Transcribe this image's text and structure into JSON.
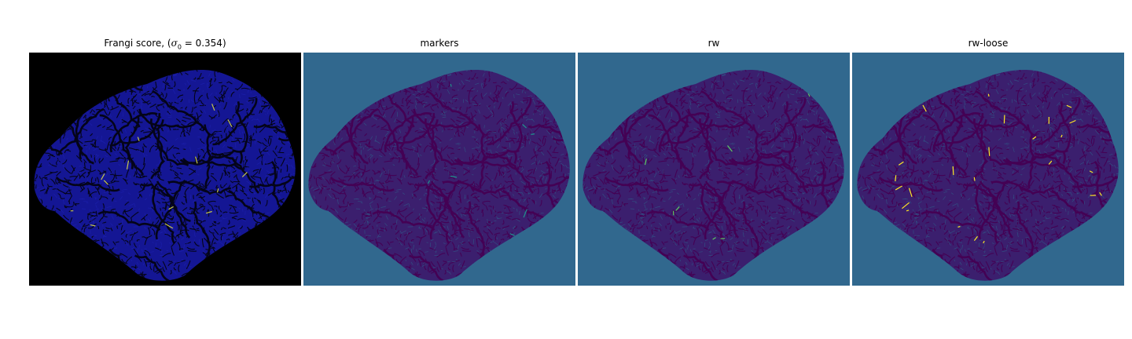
{
  "figure": {
    "panels": [
      {
        "title_prefix": "Frangi score, (",
        "sigma_symbol": "σ",
        "sigma_sub": "0",
        "title_suffix": " = 0.354)",
        "colors": {
          "background": "#000000",
          "tissue": "#141694",
          "vessel": "#040418",
          "highlight": "#c8c84a"
        }
      },
      {
        "title": "markers",
        "colors": {
          "background": "#31688e",
          "tissue": "#3b1f6e",
          "vessel": "#440154",
          "highlight": "#21918c"
        }
      },
      {
        "title": "rw",
        "colors": {
          "background": "#31688e",
          "tissue": "#3b1f6e",
          "vessel": "#440154",
          "highlight": "#5ec962"
        }
      },
      {
        "title": "rw-loose",
        "colors": {
          "background": "#31688e",
          "tissue": "#3b1f6e",
          "vessel": "#440154",
          "highlight": "#fde725"
        }
      }
    ]
  }
}
